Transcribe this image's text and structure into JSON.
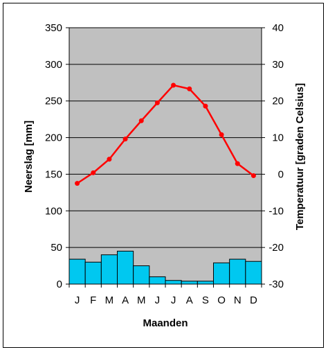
{
  "chart_data": {
    "type": "bar+line",
    "categories": [
      "J",
      "F",
      "M",
      "A",
      "M",
      "J",
      "J",
      "A",
      "S",
      "O",
      "N",
      "D"
    ],
    "xlabel": "Maanden",
    "series": [
      {
        "name": "Neerslag",
        "type": "bar",
        "axis": "left",
        "color": "#00c8f0",
        "values": [
          34,
          30,
          40,
          45,
          25,
          10,
          5,
          4,
          4,
          29,
          34,
          31
        ]
      },
      {
        "name": "Temperatuur",
        "type": "line",
        "axis": "right",
        "color": "#ff0000",
        "values": [
          -2.5,
          0.4,
          4.1,
          9.6,
          14.6,
          19.5,
          24.3,
          23.3,
          18.6,
          10.8,
          2.9,
          -0.4
        ]
      }
    ],
    "left_axis": {
      "label": "Neerslag [mm]",
      "min": 0,
      "max": 350,
      "ticks": [
        0,
        50,
        100,
        150,
        200,
        250,
        300,
        350
      ]
    },
    "right_axis": {
      "label": "Temperatuur [graden Celsius]",
      "min": -30,
      "max": 40,
      "ticks": [
        -30,
        -20,
        -10,
        0,
        10,
        20,
        30,
        40
      ]
    },
    "plot_background": "#c0c0c0",
    "grid": true
  }
}
